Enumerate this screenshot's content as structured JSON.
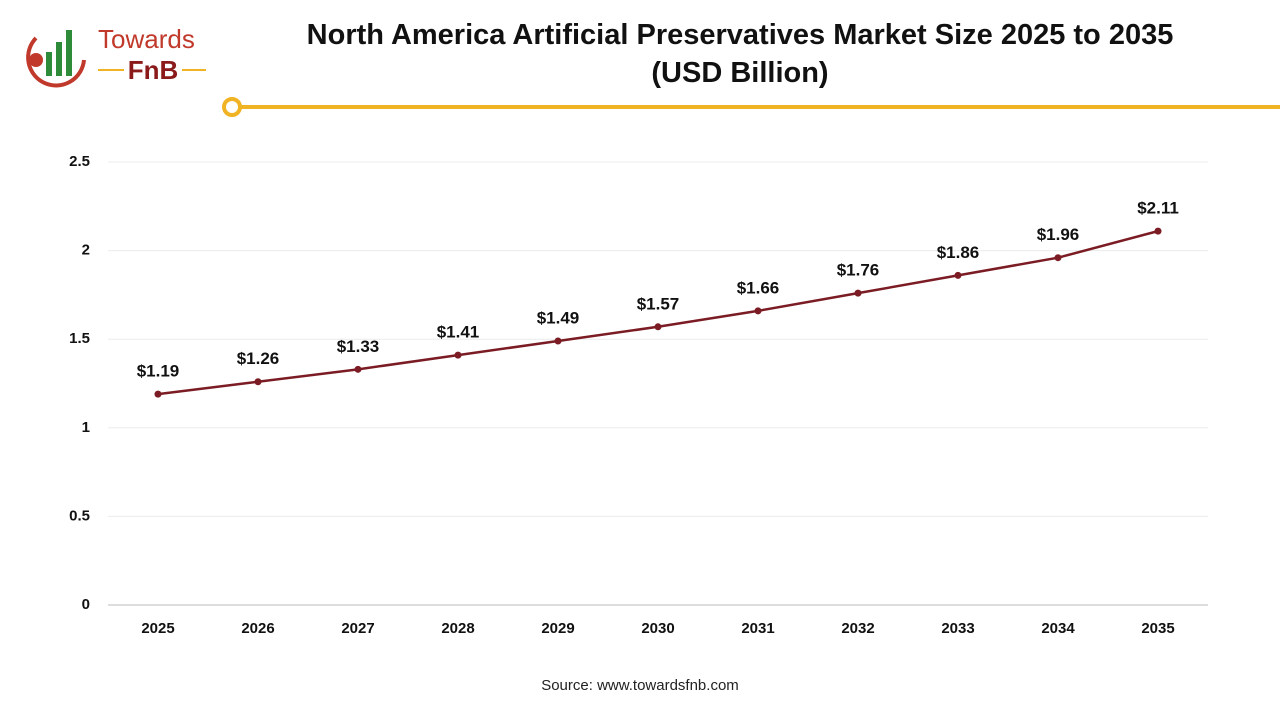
{
  "logo": {
    "line1": "Towards",
    "line2": "FnB"
  },
  "chart_data": {
    "type": "line",
    "title": "North America Artificial Preservatives Market Size 2025 to 2035 (USD Billion)",
    "categories": [
      "2025",
      "2026",
      "2027",
      "2028",
      "2029",
      "2030",
      "2031",
      "2032",
      "2033",
      "2034",
      "2035"
    ],
    "values": [
      1.19,
      1.26,
      1.33,
      1.41,
      1.49,
      1.57,
      1.66,
      1.76,
      1.86,
      1.96,
      2.11
    ],
    "value_labels": [
      "$1.19",
      "$1.26",
      "$1.33",
      "$1.41",
      "$1.49",
      "$1.57",
      "$1.66",
      "$1.76",
      "$1.86",
      "$1.96",
      "$2.11"
    ],
    "color": "#7b1c24",
    "ylim": [
      0,
      2.5
    ],
    "yticks": [
      0,
      0.5,
      1,
      1.5,
      2,
      2.5
    ],
    "grid": true,
    "source": "Source: www.towardsfnb.com"
  }
}
